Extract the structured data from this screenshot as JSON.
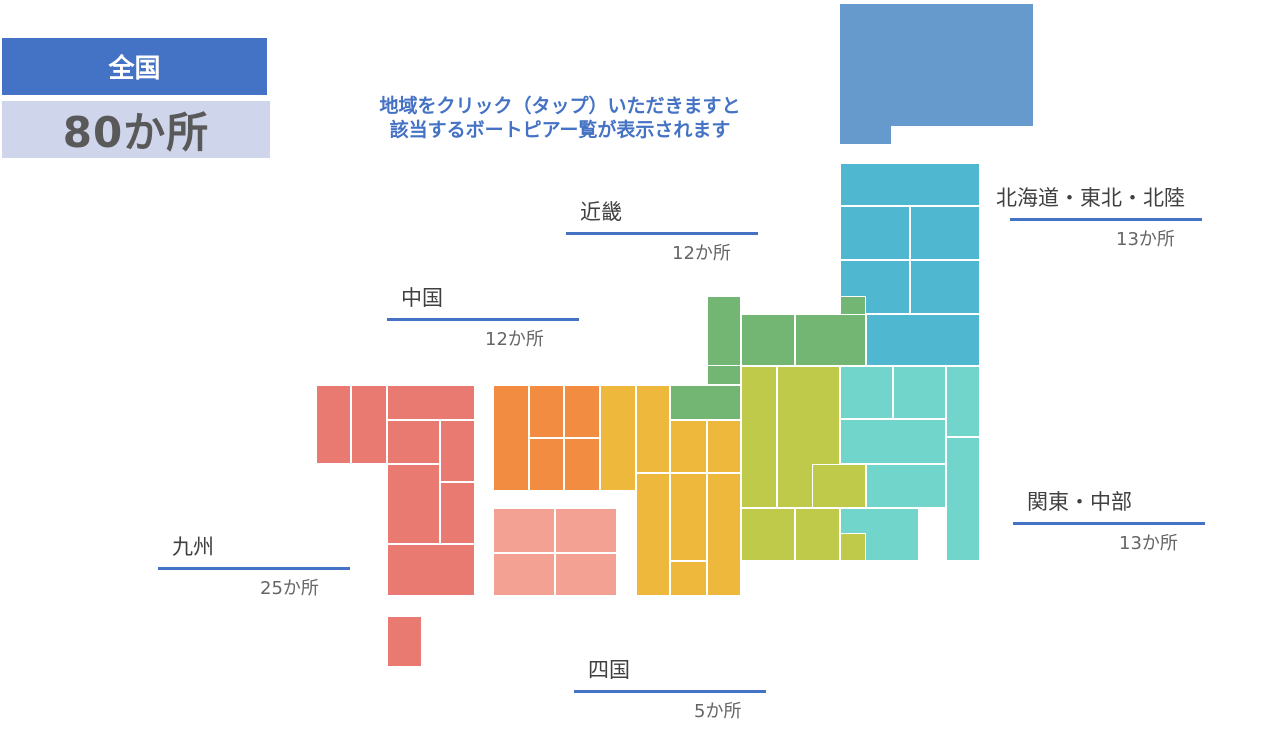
{
  "total": {
    "label": "全国",
    "count": "80か所"
  },
  "instruction": {
    "line1": "地域をクリック（タップ）いただきますと",
    "line2": "該当するボートピアー覧が表示されます"
  },
  "regions": {
    "hokkaido_tohoku_hokuriku": {
      "name": "北海道・東北・北陸",
      "count": "13か所"
    },
    "kinki": {
      "name": "近畿",
      "count": "12か所"
    },
    "chugoku": {
      "name": "中国",
      "count": "12か所"
    },
    "kanto_chubu": {
      "name": "関東・中部",
      "count": "13か所"
    },
    "kyushu": {
      "name": "九州",
      "count": "25か所"
    },
    "shikoku": {
      "name": "四国",
      "count": "5か所"
    }
  },
  "colors": {
    "accent": "#4472c4",
    "hokkaido": "#6699cc",
    "tohoku": "#4fb8d0",
    "hokuriku": "#73b673",
    "kanto": "#72d5cc",
    "chubu": "#bfc94a",
    "kinki": "#eeb83c",
    "chugoku": "#f28c40",
    "shikoku": "#f2a193",
    "kyushu": "#e87a72"
  }
}
